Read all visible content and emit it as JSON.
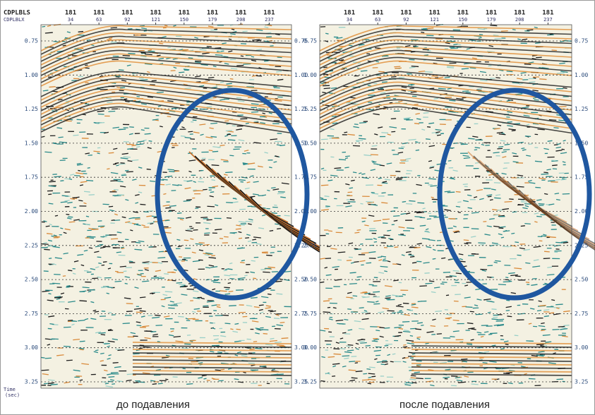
{
  "header_labels": [
    "CDPLBLS",
    "CDPLBLX"
  ],
  "time_label": "Time",
  "time_unit": "(sec)",
  "panels": [
    {
      "caption": "до подавления",
      "cdplbls": [
        "181",
        "181",
        "181",
        "181",
        "181",
        "181",
        "181",
        "181"
      ],
      "cdplblx": [
        "34",
        "63",
        "92",
        "121",
        "150",
        "179",
        "208",
        "237"
      ],
      "time_ticks": [
        "0.75",
        "1.00",
        "1.25",
        "1.50",
        "1.75",
        "2.00",
        "2.25",
        "2.50",
        "2.75",
        "3.00",
        "3.25"
      ]
    },
    {
      "caption": "после подавления",
      "cdplbls": [
        "181",
        "181",
        "181",
        "181",
        "181",
        "181",
        "181",
        "181"
      ],
      "cdplblx": [
        "34",
        "63",
        "92",
        "121",
        "150",
        "179",
        "208",
        "237"
      ],
      "time_ticks": [
        "0.75",
        "1.00",
        "1.25",
        "1.50",
        "1.75",
        "2.00",
        "2.25",
        "2.50",
        "2.75",
        "3.00",
        "3.25"
      ]
    }
  ]
}
